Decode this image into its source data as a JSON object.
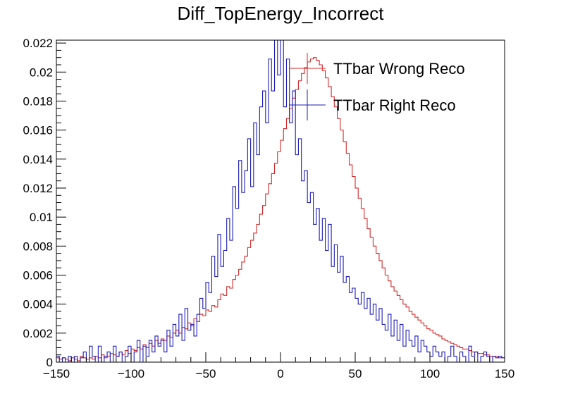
{
  "chart_data": {
    "type": "histogram-step",
    "title": "Diff_TopEnergy_Incorrect",
    "xlabel": "",
    "ylabel": "",
    "xlim": [
      -150,
      150
    ],
    "ylim": [
      0,
      0.0222
    ],
    "bin_width": 2,
    "x_ticks": [
      -150,
      -100,
      -50,
      0,
      50,
      100,
      150
    ],
    "x_tick_labels": [
      "−150",
      "−100",
      "−50",
      "0",
      "50",
      "100",
      "150"
    ],
    "y_ticks": [
      0,
      0.002,
      0.004,
      0.006,
      0.008,
      0.01,
      0.012,
      0.014,
      0.016,
      0.018,
      0.02,
      0.022
    ],
    "y_tick_labels": [
      "0",
      "0.002",
      "0.004",
      "0.006",
      "0.008",
      "0.01",
      "0.012",
      "0.014",
      "0.016",
      "0.018",
      "0.02",
      "0.022"
    ],
    "legend_position": "top-right",
    "grid": false,
    "series": [
      {
        "name": "TTbar Wrong Reco",
        "color": "#d42a2a",
        "values": [
          0.0003,
          0.0002,
          0.0003,
          0.0002,
          0.0001,
          0.0003,
          0.0002,
          0.0001,
          0.0004,
          0.0003,
          0.0002,
          0.0003,
          0.0002,
          0.0004,
          0.0003,
          0.0005,
          0.0003,
          0.0004,
          0.0006,
          0.0005,
          0.0004,
          0.0007,
          0.0005,
          0.0008,
          0.0006,
          0.0009,
          0.0008,
          0.001,
          0.0009,
          0.0012,
          0.001,
          0.0013,
          0.0011,
          0.0015,
          0.0013,
          0.0016,
          0.0015,
          0.0018,
          0.0017,
          0.002,
          0.0022,
          0.002,
          0.0024,
          0.0023,
          0.0027,
          0.0025,
          0.003,
          0.0028,
          0.0033,
          0.0032,
          0.0036,
          0.0035,
          0.0039,
          0.0038,
          0.0043,
          0.0047,
          0.0046,
          0.0052,
          0.0051,
          0.0057,
          0.006,
          0.0064,
          0.0069,
          0.0073,
          0.0079,
          0.0084,
          0.0089,
          0.0095,
          0.0102,
          0.0108,
          0.0116,
          0.0123,
          0.013,
          0.0137,
          0.0145,
          0.0153,
          0.0161,
          0.0168,
          0.0175,
          0.0182,
          0.0188,
          0.0194,
          0.0199,
          0.0203,
          0.0207,
          0.0209,
          0.021,
          0.0208,
          0.0205,
          0.0201,
          0.0196,
          0.019,
          0.0183,
          0.0176,
          0.0168,
          0.016,
          0.0152,
          0.0144,
          0.0136,
          0.0128,
          0.012,
          0.0113,
          0.0106,
          0.0099,
          0.0092,
          0.0086,
          0.008,
          0.0075,
          0.007,
          0.0065,
          0.006,
          0.0056,
          0.0052,
          0.0049,
          0.0046,
          0.0043,
          0.004,
          0.0038,
          0.0035,
          0.0033,
          0.0031,
          0.0029,
          0.0027,
          0.0025,
          0.0023,
          0.0022,
          0.002,
          0.0019,
          0.0018,
          0.0016,
          0.0015,
          0.0014,
          0.0013,
          0.0012,
          0.0011,
          0.001,
          0.0009,
          0.0009,
          0.0008,
          0.0007,
          0.0007,
          0.0006,
          0.0006,
          0.0005,
          0.0005,
          0.0004,
          0.0004,
          0.0004,
          0.0003,
          0.0003
        ]
      },
      {
        "name": "TTbar Right Reco",
        "color": "#1d1dbb",
        "values": [
          0.0004,
          0,
          0.0003,
          0,
          0.0004,
          0,
          0.0004,
          0,
          0.0003,
          0.0007,
          0,
          0.0011,
          0.0004,
          0,
          0.0011,
          0,
          0.0004,
          0.0007,
          0,
          0.0011,
          0.0004,
          0.0007,
          0,
          0.0004,
          0.0011,
          0,
          0.0007,
          0.0015,
          0,
          0.0011,
          0.0004,
          0.0015,
          0.0007,
          0.0018,
          0.0011,
          0.0015,
          0.0007,
          0.0022,
          0.0011,
          0.0026,
          0.0018,
          0.0033,
          0.0015,
          0.0037,
          0.0022,
          0.0026,
          0.0018,
          0.0033,
          0.0044,
          0.0037,
          0.0055,
          0.0048,
          0.0073,
          0.0059,
          0.0088,
          0.0066,
          0.0077,
          0.0099,
          0.0084,
          0.0121,
          0.0106,
          0.0139,
          0.0117,
          0.0132,
          0.0154,
          0.0121,
          0.0165,
          0.0143,
          0.0176,
          0.0187,
          0.0165,
          0.0209,
          0.0187,
          0.0222,
          0.0198,
          0.0222,
          0.0176,
          0.0209,
          0.0165,
          0.0187,
          0.0143,
          0.0154,
          0.0125,
          0.0132,
          0.011,
          0.0117,
          0.0095,
          0.0106,
          0.0084,
          0.0099,
          0.0077,
          0.0095,
          0.0066,
          0.0081,
          0.0062,
          0.0073,
          0.0055,
          0.0059,
          0.0048,
          0.0051,
          0.0044,
          0.004,
          0.0048,
          0.0037,
          0.0044,
          0.0033,
          0.004,
          0.0029,
          0.0037,
          0.0026,
          0.0022,
          0.0033,
          0.0018,
          0.0029,
          0.0015,
          0.0026,
          0.0011,
          0.0022,
          0.0015,
          0.0011,
          0.0018,
          0.0007,
          0.0015,
          0.0011,
          0.0007,
          0.0004,
          0.0011,
          0.0007,
          0.0004,
          0.0007,
          0,
          0.0004,
          0.0011,
          0.0004,
          0,
          0.0007,
          0.0004,
          0,
          0.0011,
          0.0004,
          0.0007,
          0,
          0.0004,
          0.0007,
          0.0004,
          0,
          0.0004,
          0.0003,
          0.0004,
          0.0003
        ]
      }
    ]
  }
}
